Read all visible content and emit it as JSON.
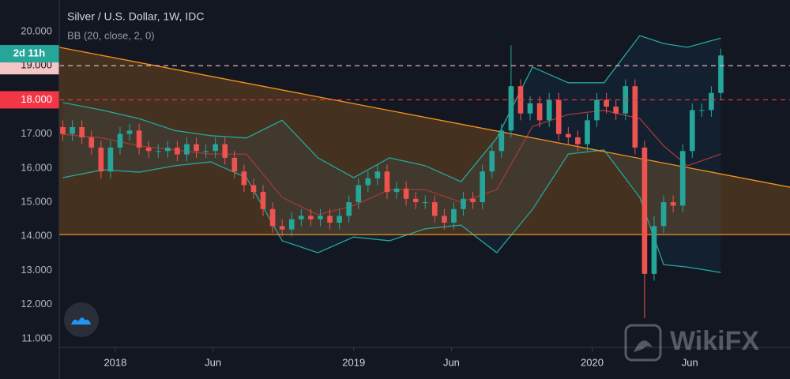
{
  "chart_data": {
    "type": "candlestick",
    "title": "Silver / U.S. Dollar, 1W, IDC",
    "subtitle": "BB (20, close, 2, 0)",
    "watermark": "WikiFX",
    "countdown": "2d 11h",
    "last_price": 19.35,
    "x": [
      2017.78,
      2017.82,
      2017.86,
      2017.9,
      2017.94,
      2017.98,
      2018.02,
      2018.06,
      2018.1,
      2018.14,
      2018.18,
      2018.22,
      2018.26,
      2018.3,
      2018.34,
      2018.38,
      2018.42,
      2018.46,
      2018.5,
      2018.54,
      2018.58,
      2018.62,
      2018.66,
      2018.7,
      2018.74,
      2018.78,
      2018.82,
      2018.86,
      2018.9,
      2018.94,
      2018.98,
      2019.02,
      2019.06,
      2019.1,
      2019.14,
      2019.18,
      2019.22,
      2019.26,
      2019.3,
      2019.34,
      2019.38,
      2019.42,
      2019.46,
      2019.5,
      2019.54,
      2019.58,
      2019.62,
      2019.66,
      2019.7,
      2019.74,
      2019.78,
      2019.82,
      2019.86,
      2019.9,
      2019.94,
      2019.98,
      2020.02,
      2020.06,
      2020.1,
      2020.14,
      2020.18,
      2020.22,
      2020.26,
      2020.3,
      2020.34,
      2020.38,
      2020.42,
      2020.46,
      2020.5,
      2020.54
    ],
    "open": [
      17.2,
      17.0,
      17.2,
      16.9,
      16.6,
      15.9,
      16.6,
      17.0,
      17.1,
      16.6,
      16.5,
      16.5,
      16.6,
      16.4,
      16.7,
      16.5,
      16.5,
      16.7,
      16.3,
      15.9,
      15.5,
      15.3,
      14.8,
      14.3,
      14.2,
      14.5,
      14.6,
      14.5,
      14.6,
      14.4,
      14.6,
      15.0,
      15.5,
      15.7,
      15.9,
      15.3,
      15.4,
      15.1,
      15.0,
      15.0,
      14.6,
      14.4,
      14.8,
      15.1,
      15.0,
      15.9,
      16.5,
      17.1,
      18.4,
      17.6,
      17.9,
      17.4,
      18.0,
      17.0,
      16.9,
      16.7,
      17.4,
      18.0,
      17.8,
      17.6,
      18.4,
      16.6,
      12.9,
      14.3,
      15.0,
      14.9,
      16.5,
      17.7,
      17.7,
      18.2
    ],
    "high": [
      17.4,
      17.4,
      17.4,
      17.1,
      16.8,
      16.8,
      17.2,
      17.3,
      17.3,
      16.8,
      16.7,
      16.8,
      16.8,
      16.9,
      16.9,
      16.7,
      16.9,
      16.9,
      16.5,
      16.1,
      15.7,
      15.5,
      15.0,
      14.5,
      14.7,
      14.8,
      14.8,
      14.8,
      14.8,
      14.8,
      15.2,
      15.7,
      15.9,
      16.1,
      16.1,
      15.6,
      15.6,
      15.3,
      15.2,
      15.2,
      14.8,
      15.0,
      15.3,
      15.3,
      16.1,
      16.7,
      17.3,
      19.6,
      18.6,
      18.1,
      18.1,
      18.2,
      18.2,
      17.2,
      17.1,
      17.6,
      18.2,
      18.2,
      18.0,
      18.6,
      18.6,
      16.8,
      14.6,
      15.2,
      15.2,
      16.7,
      17.9,
      17.9,
      18.4,
      19.5
    ],
    "low": [
      16.8,
      16.8,
      16.7,
      16.4,
      15.7,
      15.7,
      16.4,
      16.8,
      16.4,
      16.3,
      16.3,
      16.3,
      16.2,
      16.2,
      16.3,
      16.3,
      16.3,
      16.1,
      15.7,
      15.3,
      15.1,
      14.6,
      14.1,
      14.0,
      14.0,
      14.3,
      14.3,
      14.3,
      14.2,
      14.2,
      14.4,
      14.8,
      15.3,
      15.5,
      15.1,
      15.1,
      14.9,
      14.8,
      14.8,
      14.4,
      14.2,
      14.2,
      14.6,
      14.8,
      14.8,
      15.7,
      16.3,
      16.9,
      17.4,
      17.4,
      17.2,
      17.2,
      16.8,
      16.7,
      16.5,
      16.5,
      17.2,
      17.6,
      17.4,
      17.4,
      16.4,
      11.6,
      12.7,
      14.1,
      14.7,
      14.7,
      16.3,
      17.5,
      17.5,
      18.0
    ],
    "close": [
      17.0,
      17.2,
      16.9,
      16.6,
      15.9,
      16.6,
      17.0,
      17.1,
      16.6,
      16.5,
      16.5,
      16.6,
      16.4,
      16.7,
      16.5,
      16.5,
      16.7,
      16.3,
      15.9,
      15.5,
      15.3,
      14.8,
      14.3,
      14.2,
      14.5,
      14.6,
      14.5,
      14.6,
      14.4,
      14.6,
      15.0,
      15.5,
      15.7,
      15.9,
      15.3,
      15.4,
      15.1,
      15.0,
      15.0,
      14.6,
      14.4,
      14.8,
      15.1,
      15.0,
      15.9,
      16.5,
      17.1,
      18.4,
      17.6,
      17.9,
      17.4,
      18.0,
      17.0,
      16.9,
      16.7,
      17.4,
      18.0,
      17.8,
      17.6,
      18.4,
      16.6,
      12.9,
      14.3,
      15.0,
      14.9,
      16.5,
      17.7,
      17.7,
      18.2,
      19.3
    ],
    "up_color": "#26a69a",
    "down_color": "#ef5350",
    "bollinger": {
      "x": [
        2017.78,
        2017.95,
        2018.1,
        2018.25,
        2018.4,
        2018.55,
        2018.7,
        2018.85,
        2019.0,
        2019.15,
        2019.3,
        2019.45,
        2019.6,
        2019.75,
        2019.9,
        2020.05,
        2020.2,
        2020.3,
        2020.4,
        2020.54
      ],
      "upper": [
        17.92,
        17.69,
        17.45,
        17.1,
        16.95,
        16.88,
        17.4,
        16.3,
        15.72,
        16.3,
        16.07,
        15.6,
        16.88,
        18.96,
        18.5,
        18.5,
        19.88,
        19.65,
        19.54,
        19.81
      ],
      "basis": [
        16.99,
        16.88,
        16.65,
        16.53,
        16.41,
        16.41,
        15.14,
        14.63,
        14.9,
        15.37,
        15.37,
        15.0,
        15.37,
        17.22,
        17.57,
        17.69,
        17.45,
        16.65,
        16.07,
        16.41
      ],
      "lower": [
        15.72,
        15.95,
        15.88,
        16.07,
        16.18,
        15.72,
        13.87,
        13.52,
        13.98,
        13.87,
        14.22,
        14.33,
        13.52,
        14.79,
        16.41,
        16.53,
        15.14,
        13.17,
        13.1,
        12.94
      ],
      "band_color": "#26a69a",
      "basis_color": "#a33a3a"
    },
    "trendlines": [
      {
        "x": [
          2017.765,
          2020.83
        ],
        "y": [
          19.54,
          15.44
        ],
        "color": "#f7931a"
      },
      {
        "x": [
          2017.765,
          2020.83
        ],
        "y": [
          14.05,
          14.05
        ],
        "color": "#f7931a"
      }
    ],
    "price_lines": [
      {
        "value": 19,
        "label": "19.000",
        "color": "#f5c6c6"
      },
      {
        "value": 18,
        "label": "18.000",
        "color": "#f23645"
      }
    ],
    "xlim": [
      2017.765,
      2020.83
    ],
    "ylim": [
      10.745,
      20.925
    ],
    "xticks": [
      {
        "value": 2018,
        "label": "2018"
      },
      {
        "value": 2018.41,
        "label": "Jun"
      },
      {
        "value": 2019,
        "label": "2019"
      },
      {
        "value": 2019.41,
        "label": "Jun"
      },
      {
        "value": 2020,
        "label": "2020"
      },
      {
        "value": 2020.41,
        "label": "Jun"
      }
    ],
    "yticks": [
      {
        "value": 11,
        "label": "11.000"
      },
      {
        "value": 12,
        "label": "12.000"
      },
      {
        "value": 13,
        "label": "13.000"
      },
      {
        "value": 14,
        "label": "14.000"
      },
      {
        "value": 15,
        "label": "15.000"
      },
      {
        "value": 16,
        "label": "16.000"
      },
      {
        "value": 17,
        "label": "17.000"
      },
      {
        "value": 20,
        "label": "20.000"
      }
    ]
  }
}
